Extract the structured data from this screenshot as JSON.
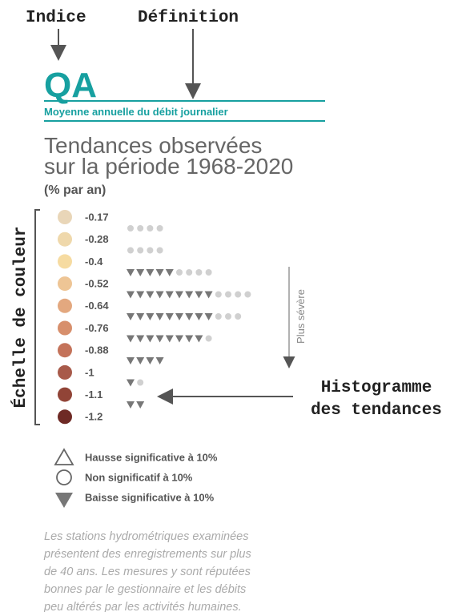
{
  "annotations": {
    "index": "Indice",
    "definition": "Définition",
    "color_scale": "Échelle de couleur",
    "histogram": [
      "Histogramme",
      "des tendances"
    ],
    "severity": "Plus sévère"
  },
  "header": {
    "code": "QA",
    "definition": "Moyenne annuelle du débit journalier"
  },
  "title": [
    "Tendances observées",
    "sur la période 1968-2020"
  ],
  "unit": "(% par an)",
  "color_scale": [
    {
      "label": -0.17,
      "color": "#e9d6b8"
    },
    {
      "label": -0.28,
      "color": "#efd8ab"
    },
    {
      "label": -0.4,
      "color": "#f6dba1"
    },
    {
      "label": -0.52,
      "color": "#eec595"
    },
    {
      "label": -0.64,
      "color": "#e3a87f"
    },
    {
      "label": -0.76,
      "color": "#d78f6c"
    },
    {
      "label": -0.88,
      "color": "#c4735a"
    },
    {
      "label": -1,
      "color": "#a85a4a"
    },
    {
      "label": -1.1,
      "color": "#914437"
    },
    {
      "label": -1.2,
      "color": "#6e2a25"
    }
  ],
  "histogram": [
    {
      "decrease": 0,
      "not_significant": 4
    },
    {
      "decrease": 0,
      "not_significant": 4
    },
    {
      "decrease": 5,
      "not_significant": 4
    },
    {
      "decrease": 9,
      "not_significant": 4
    },
    {
      "decrease": 9,
      "not_significant": 3
    },
    {
      "decrease": 8,
      "not_significant": 1
    },
    {
      "decrease": 4,
      "not_significant": 0
    },
    {
      "decrease": 1,
      "not_significant": 1
    },
    {
      "decrease": 2,
      "not_significant": 0
    }
  ],
  "legend": [
    "Hausse significative à 10%",
    "Non significatif à 10%",
    "Baisse significative à 10%"
  ],
  "footnote": [
    "Les stations hydrométriques examinées",
    "présentent des enregistrements sur plus",
    "de 40 ans. Les mesures y sont réputées",
    "bonnes par le gestionnaire et les débits",
    "peu altérés par les activités humaines."
  ]
}
